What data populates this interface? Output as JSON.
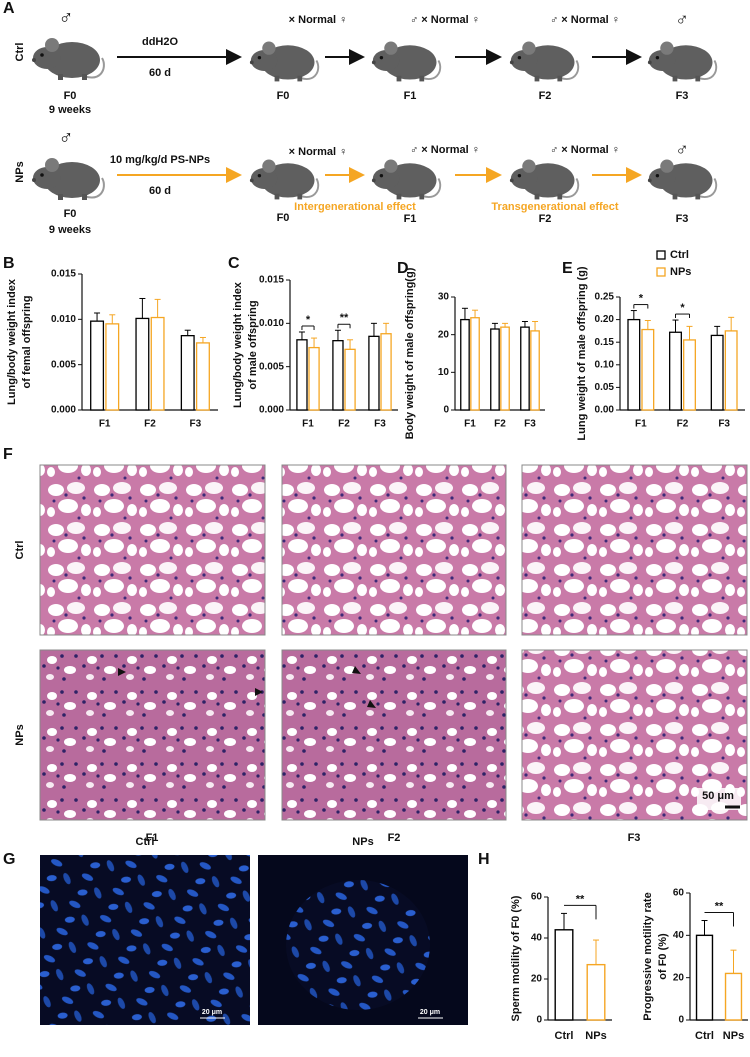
{
  "panel_labels": [
    "A",
    "B",
    "C",
    "D",
    "E",
    "F",
    "G",
    "H"
  ],
  "panel_a": {
    "rows": [
      {
        "group": "Ctrl",
        "sex": "♂",
        "treatment": "ddH2O",
        "duration": "60 d",
        "start": "F0",
        "age": "9 weeks",
        "steps": [
          {
            "cross": "× Normal ♀",
            "generation": "F0"
          },
          {
            "cross": "♂ × Normal ♀",
            "generation": "F1"
          },
          {
            "cross": "♂ × Normal ♀",
            "generation": "F2"
          },
          {
            "cross": "♂",
            "generation": "F3"
          }
        ]
      },
      {
        "group": "NPs",
        "sex": "♂",
        "treatment": "10 mg/kg/d PS-NPs",
        "duration": "60 d",
        "start": "F0",
        "age": "9 weeks",
        "steps": [
          {
            "cross": "× Normal ♀",
            "generation": "F0"
          },
          {
            "cross": "♂ × Normal ♀",
            "generation": "F1"
          },
          {
            "cross": "♂ × Normal ♀",
            "generation": "F2"
          },
          {
            "cross": "♂",
            "generation": "F3"
          }
        ],
        "effects": [
          "Intergenerational effect",
          "Transgenerational effect"
        ]
      }
    ]
  },
  "chart_data": [
    {
      "type": "bar",
      "ylabel": [
        "Lung/body weight index",
        "of femal offspring"
      ],
      "categories": [
        "F1",
        "F2",
        "F3"
      ],
      "series": [
        {
          "color": "#000000",
          "values": [
            0.0098,
            0.0101,
            0.0082
          ],
          "errors": [
            0.0009,
            0.0022,
            0.0006
          ]
        },
        {
          "color": "#f5a623",
          "values": [
            0.0095,
            0.0102,
            0.0074
          ],
          "errors": [
            0.001,
            0.002,
            0.0006
          ]
        }
      ],
      "ylim": [
        0,
        0.015
      ],
      "yticks": [
        {
          "value": 0,
          "label": "0.000"
        },
        0.005,
        {
          "value": 0.01,
          "label": "0.010"
        },
        0.015
      ]
    },
    {
      "type": "bar",
      "ylabel": [
        "Lung/body weight index",
        "of male offspring"
      ],
      "categories": [
        "F1",
        "F2",
        "F3"
      ],
      "series": [
        {
          "color": "#000000",
          "values": [
            0.0081,
            0.008,
            0.0085
          ],
          "errors": [
            0.0009,
            0.0012,
            0.0015
          ]
        },
        {
          "color": "#f5a623",
          "values": [
            0.0072,
            0.007,
            0.0088
          ],
          "errors": [
            0.0011,
            0.0011,
            0.0012
          ]
        }
      ],
      "significance": [
        "*",
        "**",
        null
      ],
      "ylim": [
        0,
        0.015
      ],
      "yticks": [
        {
          "value": 0,
          "label": "0.000"
        },
        0.005,
        {
          "value": 0.01,
          "label": "0.010"
        },
        0.015
      ]
    },
    {
      "type": "bar",
      "ylabel": [
        "Body weight of male offspring(g)"
      ],
      "categories": [
        "F1",
        "F2",
        "F3"
      ],
      "series": [
        {
          "color": "#000000",
          "values": [
            24,
            21.5,
            22
          ],
          "errors": [
            3,
            1.5,
            1.5
          ]
        },
        {
          "color": "#f5a623",
          "values": [
            24.5,
            22,
            21
          ],
          "errors": [
            2,
            1,
            2.5
          ]
        }
      ],
      "ylim": [
        0,
        30
      ],
      "yticks": [
        0,
        10,
        20,
        30
      ]
    },
    {
      "type": "bar",
      "ylabel": [
        "Lung weight of male offspring (g)"
      ],
      "categories": [
        "F1",
        "F2",
        "F3"
      ],
      "series": [
        {
          "name": "Ctrl",
          "color": "#000000",
          "values": [
            0.2,
            0.172,
            0.165
          ],
          "errors": [
            0.02,
            0.027,
            0.02
          ]
        },
        {
          "name": "NPs",
          "color": "#f5a623",
          "values": [
            0.178,
            0.155,
            0.175
          ],
          "errors": [
            0.02,
            0.03,
            0.03
          ]
        }
      ],
      "significance": [
        "*",
        "*",
        null
      ],
      "legend": "top-right",
      "ylim": [
        0,
        0.25
      ],
      "yticks": [
        {
          "value": 0,
          "label": "0.00"
        },
        0.05,
        {
          "value": 0.1,
          "label": "0.10"
        },
        0.15,
        {
          "value": 0.2,
          "label": "0.20"
        },
        0.25
      ]
    },
    {
      "type": "bar",
      "ylabel": [
        "Sperm motility of F0 (%)"
      ],
      "categories": [
        "Ctrl",
        "NPs"
      ],
      "values": [
        44,
        27
      ],
      "errors": [
        8,
        12
      ],
      "colors": [
        "#000000",
        "#f5a623"
      ],
      "significance": "**",
      "ylim": [
        0,
        60
      ],
      "yticks": [
        0,
        20,
        40,
        60
      ]
    },
    {
      "type": "bar",
      "ylabel": [
        "Progressive motility rate",
        "of F0 (%)"
      ],
      "categories": [
        "Ctrl",
        "NPs"
      ],
      "values": [
        40,
        22
      ],
      "errors": [
        7,
        11
      ],
      "colors": [
        "#000000",
        "#f5a623"
      ],
      "significance": "**",
      "ylim": [
        0,
        60
      ],
      "yticks": [
        0,
        20,
        40,
        60
      ]
    }
  ],
  "panel_f": {
    "rows": [
      "Ctrl",
      "NPs"
    ],
    "columns": [
      "F1",
      "F2",
      "F3"
    ],
    "scale_bar": "50 μm"
  },
  "panel_g": {
    "columns": [
      "Ctrl",
      "NPs"
    ],
    "scale_bar": "20 μm"
  }
}
